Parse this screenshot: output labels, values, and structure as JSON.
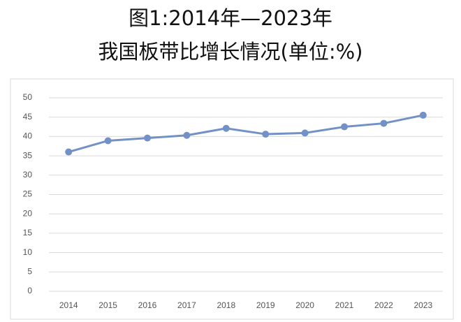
{
  "chart_data": {
    "type": "line",
    "title": "图1:2014年—2023年",
    "subtitle": "我国板带比增长情况(单位:%)",
    "categories": [
      "2014",
      "2015",
      "2016",
      "2017",
      "2018",
      "2019",
      "2020",
      "2021",
      "2022",
      "2023"
    ],
    "values": [
      36,
      38.9,
      39.6,
      40.3,
      42.1,
      40.6,
      40.9,
      42.5,
      43.4,
      45.5
    ],
    "color": "#7291c6",
    "ylim": [
      0,
      50
    ],
    "yticks": [
      0,
      5,
      10,
      15,
      20,
      25,
      30,
      35,
      40,
      45,
      50
    ],
    "grid": true
  }
}
